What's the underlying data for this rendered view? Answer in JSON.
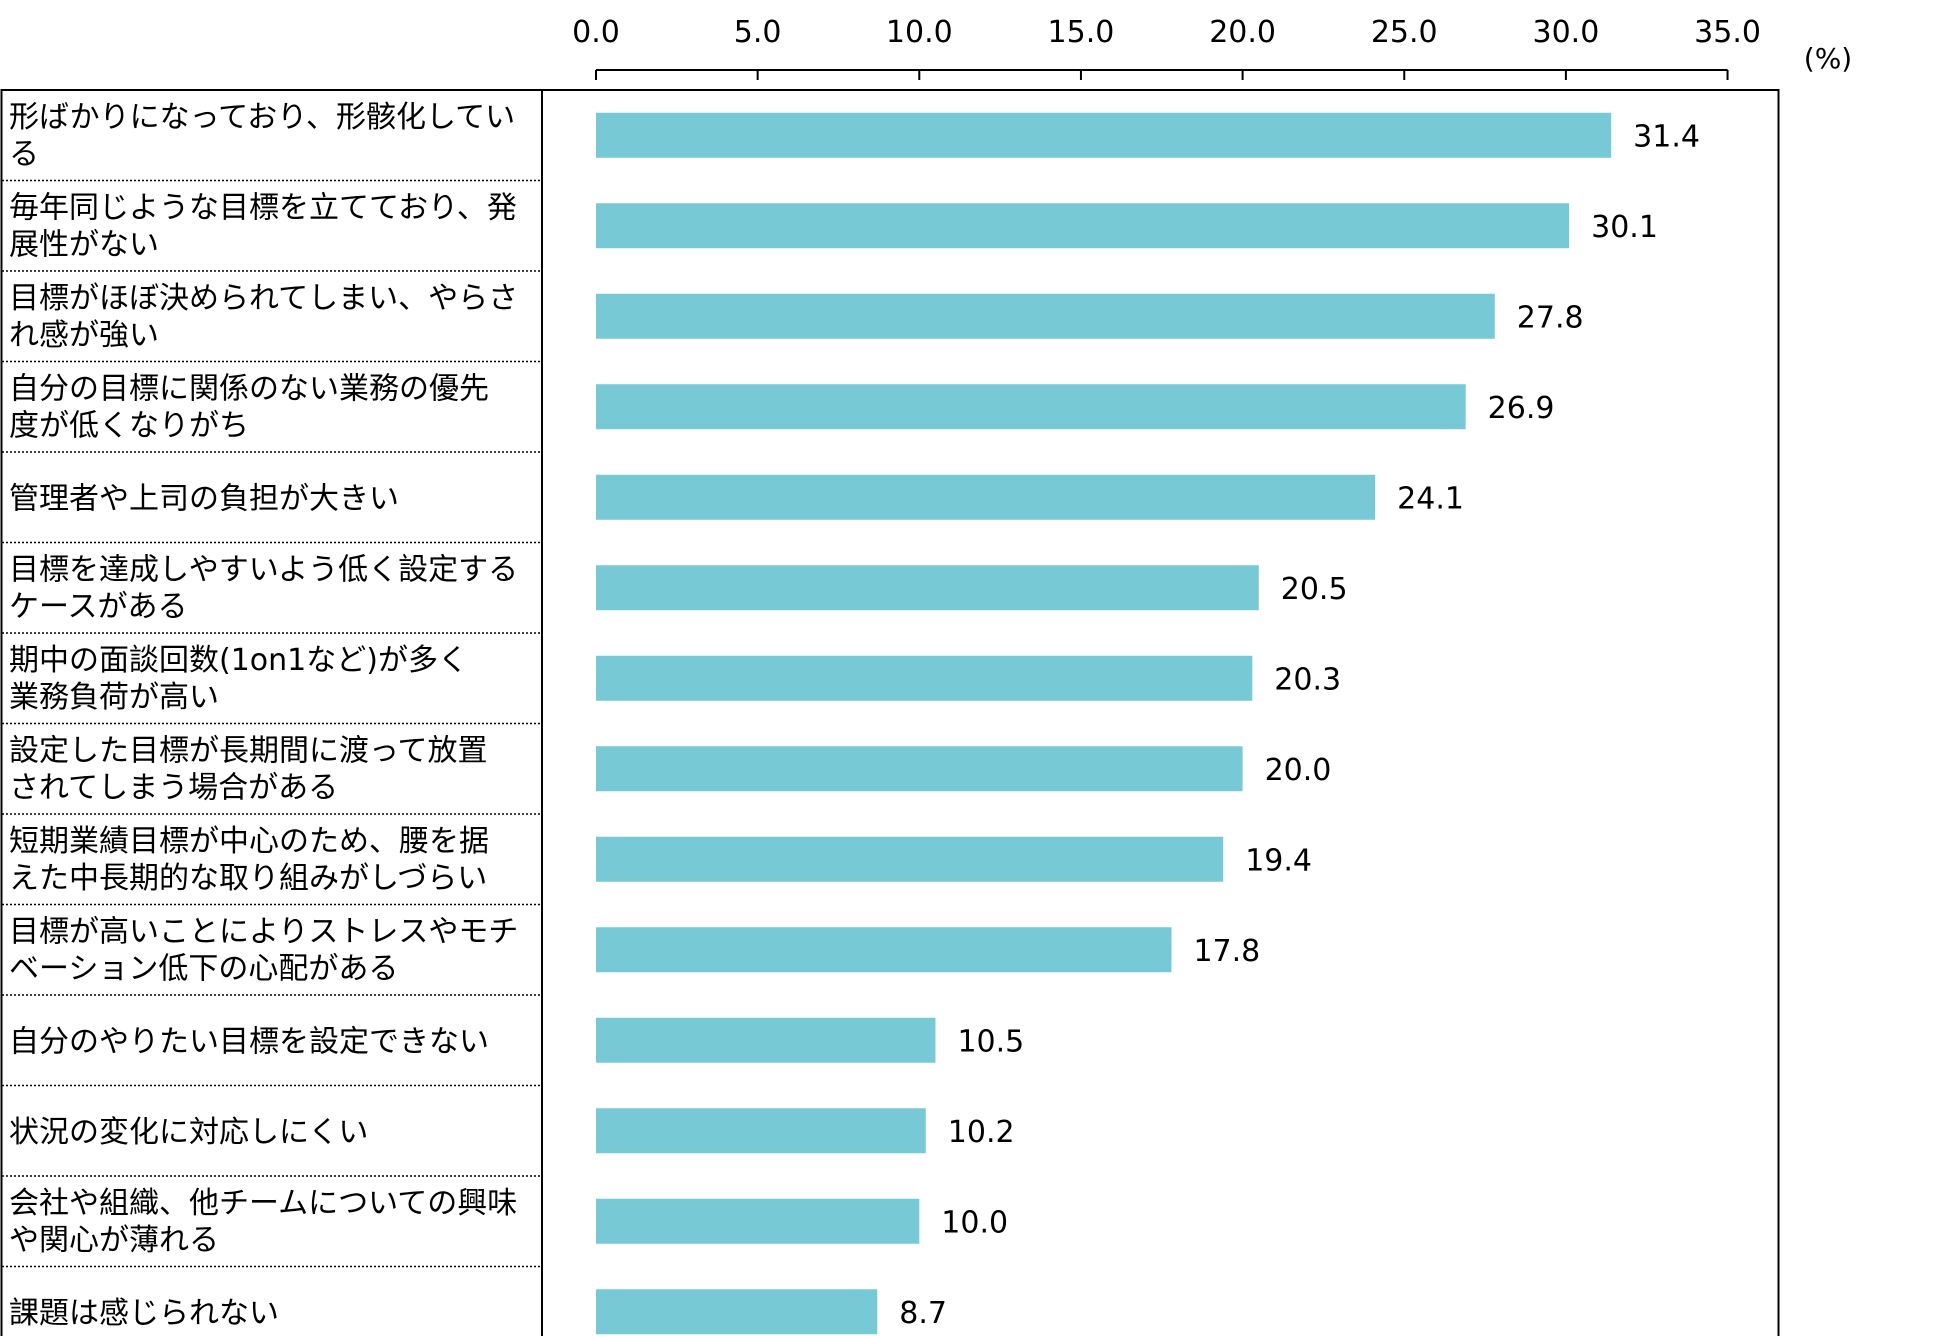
{
  "chart_data": {
    "type": "bar",
    "orientation": "horizontal",
    "unit": "(%)",
    "xlim": [
      0,
      35
    ],
    "ticks": [
      "0.0",
      "5.0",
      "10.0",
      "15.0",
      "20.0",
      "25.0",
      "30.0",
      "35.0"
    ],
    "tick_values": [
      0,
      5,
      10,
      15,
      20,
      25,
      30,
      35
    ],
    "bar_color": "#78c9d6",
    "grid": false,
    "categories": [
      [
        "形ばかりになっており、形骸化してい",
        "る"
      ],
      [
        "毎年同じような目標を立てており、発",
        "展性がない"
      ],
      [
        "目標がほぼ決められてしまい、やらさ",
        "れ感が強い"
      ],
      [
        "自分の目標に関係のない業務の優先",
        "度が低くなりがち"
      ],
      [
        "管理者や上司の負担が大きい"
      ],
      [
        "目標を達成しやすいよう低く設定する",
        "ケースがある"
      ],
      [
        "期中の面談回数(1on1など)が多く",
        "業務負荷が高い"
      ],
      [
        "設定した目標が長期間に渡って放置",
        "されてしまう場合がある"
      ],
      [
        "短期業績目標が中心のため、腰を据",
        "えた中長期的な取り組みがしづらい"
      ],
      [
        "目標が高いことによりストレスやモチ",
        "ベーション低下の心配がある"
      ],
      [
        "自分のやりたい目標を設定できない"
      ],
      [
        "状況の変化に対応しにくい"
      ],
      [
        "会社や組織、他チームについての興味",
        "や関心が薄れる"
      ],
      [
        "課題は感じられない"
      ]
    ],
    "values": [
      31.4,
      30.1,
      27.8,
      26.9,
      24.1,
      20.5,
      20.3,
      20.0,
      19.4,
      17.8,
      10.5,
      10.2,
      10.0,
      8.7
    ],
    "value_labels": [
      "31.4",
      "30.1",
      "27.8",
      "26.9",
      "24.1",
      "20.5",
      "20.3",
      "20.0",
      "19.4",
      "17.8",
      "10.5",
      "10.2",
      "10.0",
      "8.7"
    ]
  }
}
